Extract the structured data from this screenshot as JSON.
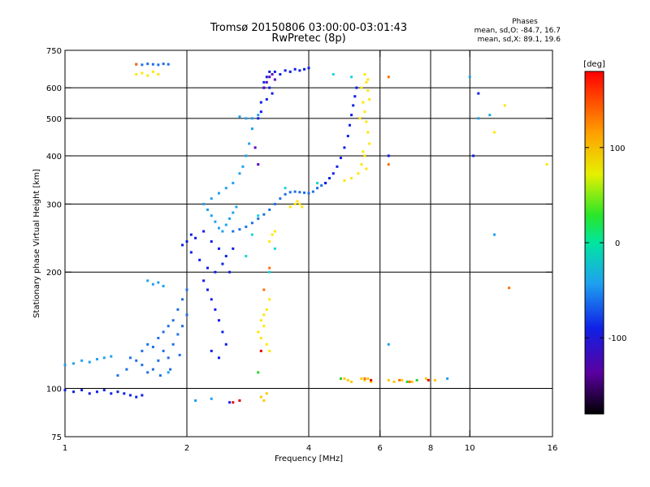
{
  "header": {
    "title": "Tromsø 20150806 03:00:00-03:01:43",
    "subtitle": "RwPretec (8p)"
  },
  "phase_stats": {
    "title": "Phases",
    "o_line": "mean, sd,O: -84.7, 16.7",
    "x_line": "mean, sd,X:  89.1, 19.6"
  },
  "chart_data": {
    "type": "scatter",
    "title": "Tromsø 20150806 03:00:00-03:01:43",
    "subtitle": "RwPretec (8p)",
    "xlabel": "Frequency [MHz]",
    "ylabel": "Stationary phase Virtual Height [km]",
    "x_scale": "log",
    "y_scale": "log",
    "xlim": [
      1,
      16
    ],
    "ylim": [
      75,
      750
    ],
    "x_ticks": [
      1,
      2,
      4,
      6,
      8,
      10,
      16
    ],
    "x_tick_labels": [
      "1",
      "2",
      "4",
      "6",
      "8",
      "10",
      "16"
    ],
    "y_ticks": [
      75,
      100,
      200,
      300,
      400,
      500,
      600,
      750
    ],
    "y_tick_labels": [
      "75",
      "100",
      "200",
      "300",
      "400",
      "500",
      "600",
      "750"
    ],
    "x_grid": [
      2,
      4,
      6,
      8,
      10
    ],
    "y_grid": [
      100,
      200,
      300,
      400,
      500,
      600
    ],
    "grid": true,
    "colorbar": {
      "label": "[deg]",
      "range": [
        -180,
        180
      ],
      "ticks": [
        100,
        0,
        -100
      ],
      "tick_labels": [
        "100",
        "0",
        "-100"
      ]
    },
    "colors": {
      "violet": "#5a00c8",
      "blue": "#0a1ee6",
      "mid_blue": "#1e6ee6",
      "light_blue": "#1ea0f0",
      "cyan": "#14d2dc",
      "yellow": "#ffe600",
      "gold": "#ffc800",
      "orange": "#ff6e00",
      "red": "#e60000",
      "green": "#28d228"
    },
    "series": [
      {
        "color": "blue",
        "points": [
          [
            1.0,
            99
          ],
          [
            1.05,
            98
          ],
          [
            1.1,
            99
          ],
          [
            1.15,
            97
          ],
          [
            1.2,
            98
          ],
          [
            1.25,
            99
          ],
          [
            1.3,
            97
          ],
          [
            1.35,
            98
          ],
          [
            1.4,
            97
          ],
          [
            1.45,
            96
          ],
          [
            1.5,
            95
          ],
          [
            1.55,
            96
          ]
        ]
      },
      {
        "color": "light_blue",
        "points": [
          [
            1.0,
            115
          ],
          [
            1.05,
            116
          ],
          [
            1.1,
            118
          ],
          [
            1.15,
            117
          ],
          [
            1.2,
            119
          ],
          [
            1.25,
            120
          ],
          [
            1.3,
            121
          ]
        ]
      },
      {
        "color": "mid_blue",
        "points": [
          [
            1.35,
            108
          ],
          [
            1.42,
            112
          ],
          [
            1.5,
            118
          ],
          [
            1.55,
            125
          ],
          [
            1.6,
            130
          ],
          [
            1.65,
            128
          ],
          [
            1.7,
            135
          ],
          [
            1.75,
            140
          ],
          [
            1.8,
            145
          ],
          [
            1.85,
            150
          ],
          [
            1.9,
            160
          ],
          [
            1.95,
            170
          ],
          [
            2.0,
            180
          ],
          [
            1.45,
            120
          ],
          [
            1.55,
            115
          ],
          [
            1.6,
            110
          ],
          [
            1.7,
            118
          ],
          [
            1.75,
            125
          ],
          [
            1.8,
            120
          ],
          [
            1.85,
            130
          ],
          [
            1.9,
            138
          ],
          [
            1.95,
            145
          ],
          [
            2.0,
            155
          ],
          [
            1.65,
            112
          ],
          [
            1.72,
            108
          ],
          [
            1.82,
            112
          ],
          [
            1.92,
            122
          ]
        ]
      },
      {
        "color": "light_blue",
        "points": [
          [
            1.6,
            190
          ],
          [
            1.65,
            186
          ],
          [
            1.7,
            188
          ],
          [
            1.75,
            184
          ]
        ]
      },
      {
        "color": "blue",
        "points": [
          [
            1.95,
            235
          ],
          [
            2.0,
            240
          ],
          [
            2.05,
            250
          ],
          [
            2.1,
            245
          ],
          [
            2.2,
            255
          ],
          [
            2.3,
            240
          ],
          [
            2.4,
            230
          ],
          [
            2.5,
            220
          ],
          [
            2.05,
            225
          ],
          [
            2.15,
            215
          ],
          [
            2.25,
            205
          ],
          [
            2.35,
            200
          ],
          [
            2.45,
            210
          ],
          [
            2.2,
            190
          ],
          [
            2.25,
            180
          ],
          [
            2.3,
            170
          ],
          [
            2.35,
            160
          ],
          [
            2.4,
            150
          ],
          [
            2.45,
            140
          ],
          [
            2.5,
            130
          ],
          [
            2.3,
            125
          ],
          [
            2.4,
            120
          ],
          [
            2.55,
            200
          ],
          [
            2.6,
            230
          ]
        ]
      },
      {
        "color": "light_blue",
        "points": [
          [
            2.2,
            300
          ],
          [
            2.25,
            290
          ],
          [
            2.3,
            280
          ],
          [
            2.35,
            270
          ],
          [
            2.4,
            260
          ],
          [
            2.45,
            255
          ],
          [
            2.5,
            265
          ],
          [
            2.55,
            275
          ],
          [
            2.6,
            285
          ],
          [
            2.65,
            295
          ],
          [
            2.3,
            310
          ],
          [
            2.4,
            320
          ],
          [
            2.5,
            330
          ],
          [
            2.6,
            340
          ],
          [
            2.7,
            360
          ]
        ]
      },
      {
        "color": "mid_blue",
        "points": [
          [
            2.6,
            255
          ],
          [
            2.7,
            258
          ],
          [
            2.8,
            262
          ],
          [
            2.9,
            268
          ],
          [
            3.0,
            275
          ],
          [
            3.1,
            282
          ],
          [
            3.2,
            290
          ],
          [
            3.3,
            300
          ],
          [
            3.4,
            310
          ],
          [
            3.5,
            318
          ],
          [
            3.6,
            322
          ],
          [
            3.7,
            323
          ],
          [
            3.8,
            322
          ],
          [
            3.9,
            321
          ],
          [
            4.0,
            320
          ],
          [
            4.1,
            323
          ],
          [
            4.2,
            330
          ],
          [
            4.3,
            335
          ],
          [
            4.4,
            340
          ]
        ]
      },
      {
        "color": "blue",
        "points": [
          [
            4.4,
            340
          ],
          [
            4.5,
            350
          ],
          [
            4.6,
            360
          ],
          [
            4.7,
            375
          ],
          [
            4.8,
            395
          ],
          [
            4.9,
            420
          ],
          [
            5.0,
            450
          ],
          [
            5.05,
            480
          ],
          [
            5.1,
            510
          ],
          [
            5.15,
            540
          ],
          [
            5.2,
            570
          ],
          [
            5.25,
            600
          ]
        ]
      },
      {
        "color": "light_blue",
        "points": [
          [
            2.75,
            375
          ],
          [
            2.8,
            400
          ],
          [
            2.85,
            430
          ],
          [
            2.9,
            470
          ],
          [
            2.8,
            500
          ],
          [
            2.7,
            505
          ],
          [
            2.9,
            500
          ],
          [
            3.0,
            510
          ]
        ]
      },
      {
        "color": "blue",
        "points": [
          [
            3.0,
            500
          ],
          [
            3.05,
            550
          ],
          [
            3.1,
            600
          ],
          [
            3.15,
            640
          ],
          [
            3.2,
            660
          ],
          [
            3.3,
            660
          ],
          [
            3.4,
            650
          ],
          [
            3.5,
            665
          ],
          [
            3.6,
            660
          ],
          [
            3.7,
            670
          ],
          [
            3.8,
            665
          ],
          [
            3.9,
            670
          ],
          [
            4.0,
            675
          ],
          [
            3.1,
            620
          ],
          [
            3.2,
            600
          ],
          [
            3.25,
            580
          ],
          [
            3.15,
            560
          ],
          [
            3.05,
            520
          ]
        ]
      },
      {
        "color": "violet",
        "points": [
          [
            3.1,
            600
          ],
          [
            3.15,
            620
          ],
          [
            3.2,
            640
          ],
          [
            3.25,
            650
          ],
          [
            3.3,
            630
          ],
          [
            2.95,
            420
          ],
          [
            3.0,
            380
          ]
        ]
      },
      {
        "color": "mid_blue",
        "points": [
          [
            1.5,
            690
          ],
          [
            1.55,
            688
          ],
          [
            1.6,
            692
          ],
          [
            1.65,
            690
          ],
          [
            1.7,
            688
          ],
          [
            1.75,
            692
          ],
          [
            1.8,
            690
          ]
        ]
      },
      {
        "color": "yellow",
        "points": [
          [
            1.5,
            650
          ],
          [
            1.55,
            655
          ],
          [
            1.6,
            645
          ],
          [
            1.65,
            660
          ],
          [
            1.7,
            650
          ],
          [
            3.6,
            295
          ],
          [
            3.7,
            300
          ],
          [
            3.75,
            305
          ],
          [
            3.8,
            300
          ],
          [
            3.85,
            295
          ],
          [
            3.2,
            240
          ],
          [
            3.25,
            250
          ],
          [
            3.3,
            255
          ],
          [
            3.05,
            150
          ],
          [
            3.1,
            155
          ],
          [
            3.15,
            160
          ],
          [
            3.2,
            170
          ],
          [
            3.1,
            145
          ],
          [
            3.0,
            140
          ],
          [
            3.05,
            135
          ],
          [
            3.15,
            130
          ],
          [
            3.2,
            125
          ]
        ]
      },
      {
        "color": "yellow",
        "points": [
          [
            5.5,
            650
          ],
          [
            5.55,
            620
          ],
          [
            5.6,
            590
          ],
          [
            5.65,
            560
          ],
          [
            5.5,
            520
          ],
          [
            5.55,
            490
          ],
          [
            5.6,
            460
          ],
          [
            5.65,
            430
          ],
          [
            5.5,
            400
          ],
          [
            5.55,
            370
          ],
          [
            5.3,
            360
          ],
          [
            5.1,
            350
          ],
          [
            4.9,
            345
          ],
          [
            5.4,
            380
          ],
          [
            5.45,
            410
          ],
          [
            5.35,
            500
          ],
          [
            5.45,
            550
          ],
          [
            5.4,
            600
          ],
          [
            5.6,
            630
          ]
        ]
      },
      {
        "color": "cyan",
        "points": [
          [
            3.2,
            200
          ],
          [
            3.3,
            230
          ],
          [
            3.0,
            280
          ],
          [
            3.5,
            330
          ],
          [
            4.2,
            340
          ],
          [
            4.6,
            650
          ],
          [
            5.1,
            640
          ],
          [
            2.9,
            250
          ],
          [
            2.8,
            220
          ]
        ]
      },
      {
        "color": "gold",
        "points": [
          [
            4.9,
            106
          ],
          [
            5.0,
            105
          ],
          [
            5.1,
            104
          ],
          [
            5.4,
            106
          ],
          [
            5.5,
            105
          ],
          [
            5.6,
            106
          ],
          [
            5.7,
            104
          ],
          [
            6.3,
            105
          ],
          [
            6.5,
            104
          ],
          [
            6.8,
            105
          ],
          [
            7.2,
            104
          ],
          [
            7.8,
            106
          ],
          [
            8.2,
            105
          ],
          [
            3.05,
            95
          ],
          [
            3.1,
            93
          ],
          [
            3.15,
            97
          ]
        ]
      },
      {
        "color": "orange",
        "points": [
          [
            1.5,
            690
          ],
          [
            5.5,
            106
          ],
          [
            6.7,
            105
          ],
          [
            7.1,
            104
          ],
          [
            3.1,
            180
          ],
          [
            3.2,
            205
          ],
          [
            12.5,
            182
          ],
          [
            6.3,
            380
          ],
          [
            6.3,
            640
          ]
        ]
      },
      {
        "color": "red",
        "points": [
          [
            5.7,
            105
          ],
          [
            7.9,
            105
          ],
          [
            2.6,
            92
          ],
          [
            2.7,
            93
          ],
          [
            3.05,
            125
          ]
        ]
      },
      {
        "color": "green",
        "points": [
          [
            7.0,
            104
          ],
          [
            7.4,
            105
          ],
          [
            4.8,
            106
          ],
          [
            3.0,
            110
          ]
        ]
      },
      {
        "color": "light_blue",
        "points": [
          [
            10.0,
            640
          ],
          [
            10.5,
            500
          ],
          [
            11.2,
            510
          ],
          [
            11.5,
            250
          ],
          [
            8.8,
            106
          ],
          [
            6.3,
            130
          ],
          [
            2.1,
            93
          ],
          [
            2.3,
            94
          ],
          [
            1.8,
            110
          ]
        ]
      },
      {
        "color": "blue",
        "points": [
          [
            10.5,
            580
          ],
          [
            10.2,
            400
          ],
          [
            6.3,
            400
          ],
          [
            2.55,
            92
          ]
        ]
      },
      {
        "color": "yellow",
        "points": [
          [
            11.5,
            460
          ],
          [
            15.5,
            380
          ],
          [
            12.2,
            540
          ]
        ]
      }
    ]
  }
}
